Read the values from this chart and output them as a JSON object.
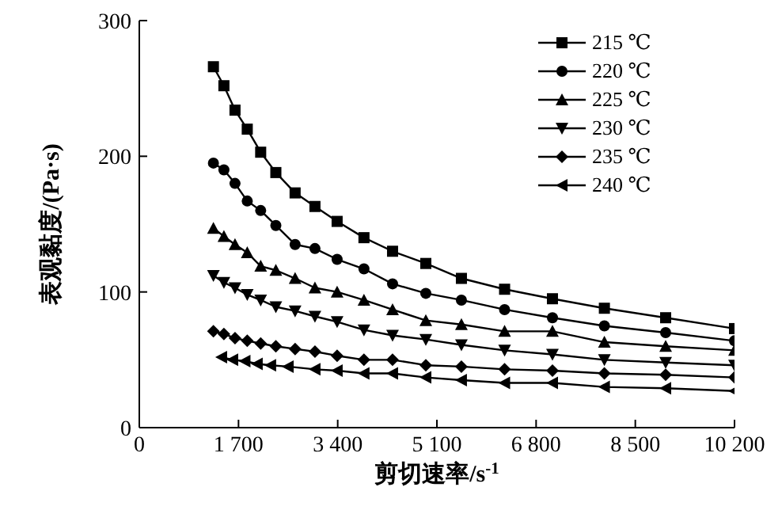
{
  "chart_data": {
    "type": "line",
    "xlabel": "剪切速率/s$^{-1}$",
    "ylabel": "表观黏度/(Pa·s)",
    "x": [
      1270,
      1450,
      1640,
      1850,
      2080,
      2340,
      2670,
      3010,
      3390,
      3850,
      4340,
      4910,
      5520,
      6260,
      7080,
      7970,
      9020,
      10200
    ],
    "xlim": [
      0,
      10200
    ],
    "xticks": [
      0,
      {
        "value": 1700,
        "label": "1 700"
      },
      {
        "value": 3400,
        "label": "3 400"
      },
      {
        "value": 5100,
        "label": "5 100"
      },
      {
        "value": 6800,
        "label": "6 800"
      },
      {
        "value": 8500,
        "label": "8 500"
      },
      {
        "value": 10200,
        "label": "10 200"
      }
    ],
    "ylim": [
      0,
      300
    ],
    "yticks": [
      0,
      100,
      200,
      300
    ],
    "grid": false,
    "legend": "top right",
    "line_style": "solid",
    "series": [
      {
        "name": "215 ℃",
        "color": "#000000",
        "marker": "square",
        "values": [
          266,
          252,
          234,
          220,
          203,
          188,
          173,
          163,
          152,
          140,
          130,
          121,
          110,
          102,
          95,
          88,
          81,
          73
        ]
      },
      {
        "name": "220 ℃",
        "color": "#000000",
        "marker": "circle",
        "values": [
          195,
          190,
          180,
          167,
          160,
          149,
          135,
          132,
          124,
          117,
          106,
          99,
          94,
          87,
          81,
          75,
          70,
          64
        ]
      },
      {
        "name": "225 ℃",
        "color": "#000000",
        "marker": "triangle",
        "values": [
          147,
          141,
          135,
          129,
          119,
          116,
          110,
          103,
          100,
          94,
          87,
          79,
          76,
          71,
          71,
          63,
          60,
          57
        ]
      },
      {
        "name": "230 ℃",
        "color": "#000000",
        "marker": "triangle-down",
        "values": [
          112,
          107,
          103,
          98,
          94,
          89,
          86,
          82,
          78,
          72,
          68,
          65,
          61,
          57,
          54,
          50,
          48,
          46
        ]
      },
      {
        "name": "235 ℃",
        "color": "#000000",
        "marker": "diamond",
        "values": [
          71,
          69,
          66,
          64,
          62,
          60,
          58,
          56,
          53,
          50,
          50,
          46,
          45,
          43,
          42,
          40,
          39,
          37
        ]
      },
      {
        "name": "240 ℃",
        "color": "#000000",
        "marker": "triangle-left",
        "x": [
          1410,
          1600,
          1810,
          2020,
          2250,
          2550,
          3010,
          3390,
          3850,
          4340,
          4910,
          5520,
          6260,
          7080,
          7970,
          9020,
          10200
        ],
        "values": [
          52,
          50,
          49,
          47,
          46,
          45,
          43,
          42,
          40,
          40,
          37,
          35,
          33,
          33,
          30,
          29,
          27
        ]
      }
    ]
  }
}
